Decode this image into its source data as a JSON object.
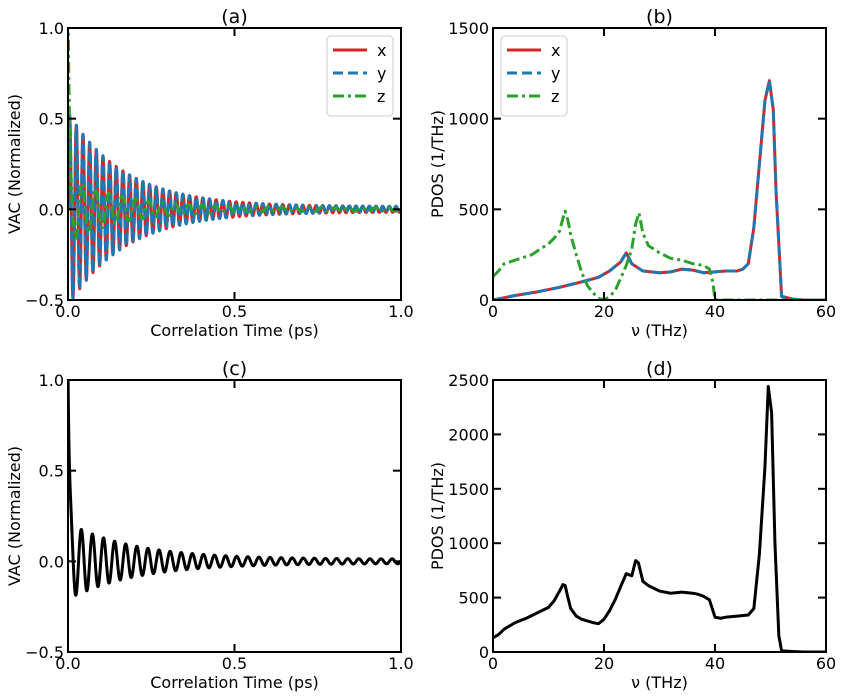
{
  "colors": {
    "x": "#d62728",
    "y": "#1f77b4",
    "z": "#2ca02c",
    "total": "#000000"
  },
  "chart_data": [
    {
      "id": "a",
      "type": "line",
      "title": "(a)",
      "xlabel": "Correlation Time (ps)",
      "ylabel": "VAC (Normalized)",
      "xlim": [
        0.0,
        1.0
      ],
      "ylim": [
        -0.5,
        1.0
      ],
      "xticks": [
        0.0,
        0.5,
        1.0
      ],
      "xtick_labels": [
        "0.0",
        "0.5",
        "1.0"
      ],
      "yticks": [
        -0.5,
        0.0,
        0.5,
        1.0
      ],
      "ytick_labels": [
        "−0.5",
        "0.0",
        "0.5",
        "1.0"
      ],
      "legend": "top-right",
      "grid": false,
      "series": [
        {
          "name": "x",
          "color_key": "x",
          "style": "solid",
          "kind": "vac",
          "params": {
            "freq": 50,
            "amp": 0.52,
            "decay": 0.17,
            "phase": 0.0,
            "spike": 0.0,
            "floor": 0.015
          }
        },
        {
          "name": "y",
          "color_key": "y",
          "style": "dashed",
          "kind": "vac",
          "params": {
            "freq": 50,
            "amp": 0.52,
            "decay": 0.17,
            "phase": 0.0,
            "spike": 0.0,
            "floor": 0.015
          }
        },
        {
          "name": "z",
          "color_key": "z",
          "style": "dashdot",
          "kind": "vac",
          "params": {
            "freq": 25,
            "amp": 0.18,
            "decay": 0.15,
            "phase": 1.2,
            "spike": 1.0,
            "floor": 0.01
          }
        }
      ]
    },
    {
      "id": "b",
      "type": "line",
      "title": "(b)",
      "xlabel": "ν (THz)",
      "ylabel": "PDOS (1/THz)",
      "xlim": [
        0,
        60
      ],
      "ylim": [
        0,
        1500
      ],
      "xticks": [
        0,
        20,
        40,
        60
      ],
      "xtick_labels": [
        "0",
        "20",
        "40",
        "60"
      ],
      "yticks": [
        0,
        500,
        1000,
        1500
      ],
      "ytick_labels": [
        "0",
        "500",
        "1000",
        "1500"
      ],
      "legend": "top-left",
      "grid": false,
      "series": [
        {
          "name": "x",
          "color_key": "x",
          "style": "solid",
          "x": [
            0,
            4,
            8,
            12,
            16,
            19,
            21,
            23,
            24,
            25,
            27,
            30,
            32,
            34,
            36,
            38,
            40,
            42,
            44,
            45,
            46,
            47,
            48,
            49,
            49.8,
            50.5,
            51,
            52,
            54,
            56,
            60
          ],
          "y": [
            0,
            25,
            45,
            70,
            100,
            125,
            160,
            210,
            260,
            200,
            160,
            150,
            155,
            170,
            165,
            150,
            155,
            160,
            160,
            170,
            200,
            400,
            750,
            1100,
            1210,
            1050,
            600,
            20,
            5,
            0,
            0
          ]
        },
        {
          "name": "y",
          "color_key": "y",
          "style": "dashed",
          "x": [
            0,
            4,
            8,
            12,
            16,
            19,
            21,
            23,
            24,
            25,
            27,
            30,
            32,
            34,
            36,
            38,
            40,
            42,
            44,
            45,
            46,
            47,
            48,
            49,
            49.8,
            50.5,
            51,
            52,
            54,
            56,
            60
          ],
          "y": [
            0,
            25,
            45,
            70,
            100,
            125,
            160,
            210,
            260,
            200,
            160,
            150,
            155,
            170,
            165,
            150,
            155,
            160,
            160,
            170,
            200,
            400,
            750,
            1100,
            1210,
            1050,
            600,
            20,
            5,
            0,
            0
          ]
        },
        {
          "name": "z",
          "color_key": "z",
          "style": "dashdot",
          "x": [
            0,
            1,
            2,
            3,
            5,
            7,
            9,
            10,
            11,
            12,
            12.6,
            13,
            13.5,
            14,
            15,
            16,
            17,
            18,
            19,
            20,
            21,
            22,
            23,
            24,
            25,
            25.7,
            26.3,
            27,
            28,
            30,
            32,
            34,
            36,
            38,
            39,
            39.6,
            40,
            44,
            48,
            52,
            56,
            60
          ],
          "y": [
            130,
            160,
            200,
            210,
            230,
            250,
            290,
            310,
            340,
            380,
            450,
            490,
            440,
            360,
            250,
            150,
            80,
            40,
            10,
            0,
            20,
            50,
            120,
            190,
            280,
            420,
            480,
            370,
            300,
            260,
            230,
            220,
            200,
            190,
            170,
            100,
            0,
            0,
            0,
            0,
            0,
            0
          ]
        }
      ]
    },
    {
      "id": "c",
      "type": "line",
      "title": "(c)",
      "xlabel": "Correlation Time (ps)",
      "ylabel": "VAC (Normalized)",
      "xlim": [
        0.0,
        1.0
      ],
      "ylim": [
        -0.5,
        1.0
      ],
      "xticks": [
        0.0,
        0.5,
        1.0
      ],
      "xtick_labels": [
        "0.0",
        "0.5",
        "1.0"
      ],
      "yticks": [
        -0.5,
        0.0,
        0.5,
        1.0
      ],
      "ytick_labels": [
        "−0.5",
        "0.0",
        "0.5",
        "1.0"
      ],
      "legend": "none",
      "grid": false,
      "series": [
        {
          "name": "",
          "color_key": "total",
          "style": "solid",
          "kind": "vac",
          "params": {
            "freq": 30,
            "amp": 0.2,
            "decay": 0.2,
            "phase": 0.3,
            "spike": 1.0,
            "floor": 0.012
          }
        }
      ]
    },
    {
      "id": "d",
      "type": "line",
      "title": "(d)",
      "xlabel": "ν (THz)",
      "ylabel": "PDOS (1/THz)",
      "xlim": [
        0,
        60
      ],
      "ylim": [
        0,
        2500
      ],
      "xticks": [
        0,
        20,
        40,
        60
      ],
      "xtick_labels": [
        "0",
        "20",
        "40",
        "60"
      ],
      "yticks": [
        0,
        500,
        1000,
        1500,
        2000,
        2500
      ],
      "ytick_labels": [
        "0",
        "500",
        "1000",
        "1500",
        "2000",
        "2500"
      ],
      "legend": "none",
      "grid": false,
      "series": [
        {
          "name": "",
          "color_key": "total",
          "style": "solid",
          "x": [
            0,
            1,
            2,
            4,
            6,
            8,
            10,
            11,
            12,
            12.6,
            13,
            13.5,
            14,
            15,
            16,
            18,
            19,
            20,
            21,
            22,
            23,
            24,
            25,
            25.7,
            26.2,
            27,
            28,
            30,
            32,
            34,
            36,
            37,
            38,
            39,
            40,
            41,
            42,
            44,
            46,
            47,
            48,
            49,
            49.6,
            50.2,
            50.8,
            51.5,
            52,
            54,
            56,
            60
          ],
          "y": [
            130,
            160,
            210,
            270,
            310,
            360,
            410,
            470,
            560,
            620,
            610,
            500,
            400,
            330,
            300,
            270,
            260,
            300,
            380,
            480,
            600,
            720,
            700,
            840,
            820,
            650,
            610,
            560,
            540,
            550,
            540,
            530,
            510,
            480,
            320,
            310,
            320,
            330,
            340,
            400,
            900,
            1700,
            2440,
            2200,
            1000,
            150,
            10,
            5,
            0,
            0
          ]
        }
      ]
    }
  ]
}
